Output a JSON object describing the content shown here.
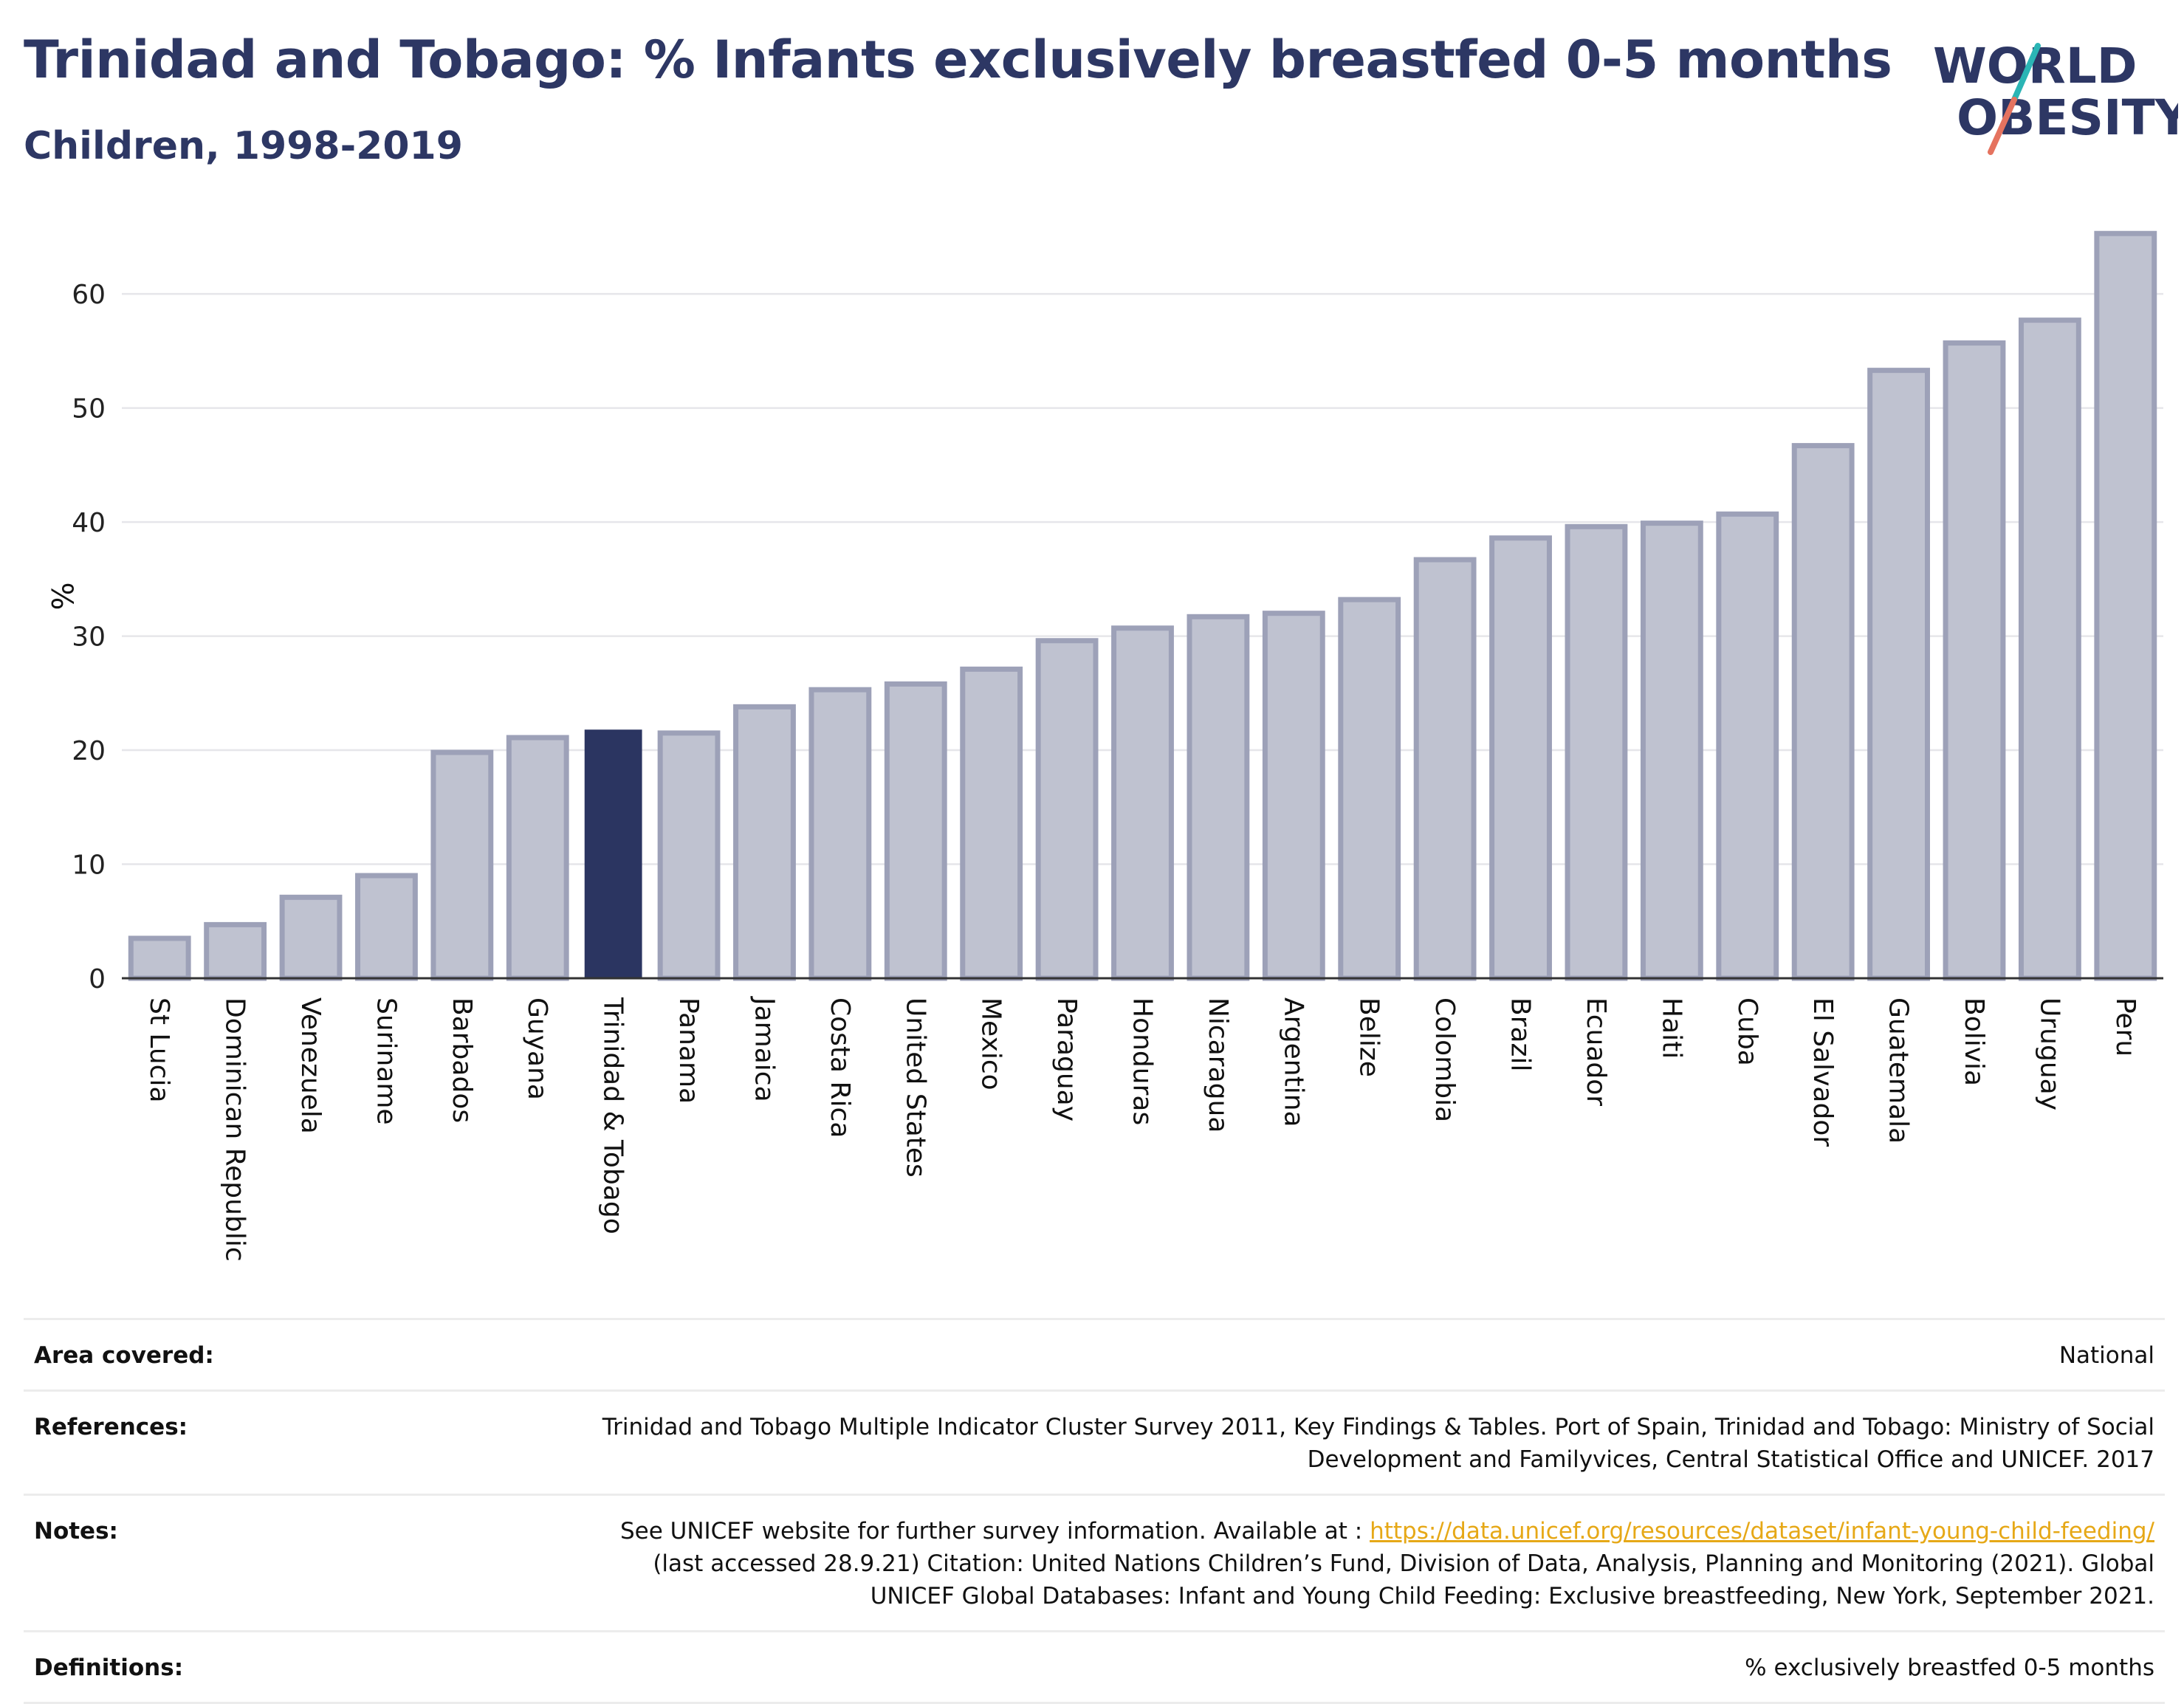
{
  "header": {
    "title": "Trinidad and Tobago: % Infants exclusively breastfed 0-5 months",
    "subtitle": "Children, 1998-2019"
  },
  "logo": {
    "line1": "WORLD",
    "line2": "OBESITY",
    "accent_teal": "#2bb5b5",
    "accent_coral": "#e5735f",
    "text_color": "#2d3764"
  },
  "chart_data": {
    "type": "bar",
    "title": "Trinidad and Tobago: % Infants exclusively breastfed 0-5 months",
    "subtitle": "Children, 1998-2019",
    "xlabel": "",
    "ylabel": "%",
    "ylim": [
      0,
      67
    ],
    "yticks": [
      0,
      10,
      20,
      30,
      40,
      50,
      60
    ],
    "grid": true,
    "categories": [
      "St Lucia",
      "Dominican Republic",
      "Venezuela",
      "Suriname",
      "Barbados",
      "Guyana",
      "Trinidad & Tobago",
      "Panama",
      "Jamaica",
      "Costa Rica",
      "United States",
      "Mexico",
      "Paraguay",
      "Honduras",
      "Nicaragua",
      "Argentina",
      "Belize",
      "Colombia",
      "Brazil",
      "Ecuador",
      "Haiti",
      "Cuba",
      "El Salvador",
      "Guatemala",
      "Bolivia",
      "Uruguay",
      "Peru"
    ],
    "values": [
      3.5,
      4.7,
      7.1,
      9.0,
      19.8,
      21.1,
      21.8,
      21.5,
      23.8,
      25.3,
      25.8,
      27.1,
      29.6,
      30.7,
      31.7,
      32.0,
      33.2,
      36.7,
      38.6,
      39.6,
      39.9,
      40.7,
      46.7,
      53.3,
      55.7,
      57.7,
      65.3
    ],
    "highlight": "Trinidad & Tobago",
    "colors": {
      "bar": "#bfc2d0",
      "bar_border": "#9da1b8",
      "highlight": "#2b3561",
      "grid": "#e6e6ea",
      "axis": "#333333"
    }
  },
  "meta": {
    "area_label": "Area covered:",
    "area_value": "National",
    "references_label": "References:",
    "references_value": "Trinidad and Tobago Multiple Indicator Cluster Survey 2011, Key Findings & Tables. Port of Spain, Trinidad and Tobago: Ministry of Social Development and Familyvices, Central Statistical Office and UNICEF. 2017",
    "notes_label": "Notes:",
    "notes_prefix": "See UNICEF website for further survey information. Available at : ",
    "notes_link": "https://data.unicef.org/resources/dataset/infant-young-child-feeding/",
    "notes_suffix": " (last accessed 28.9.21) Citation: United Nations Children’s Fund, Division of Data, Analysis, Planning and Monitoring (2021). Global UNICEF Global Databases: Infant and Young Child Feeding: Exclusive breastfeeding, New York, September 2021.",
    "definitions_label": "Definitions:",
    "definitions_value": "% exclusively breastfed 0-5 months"
  }
}
